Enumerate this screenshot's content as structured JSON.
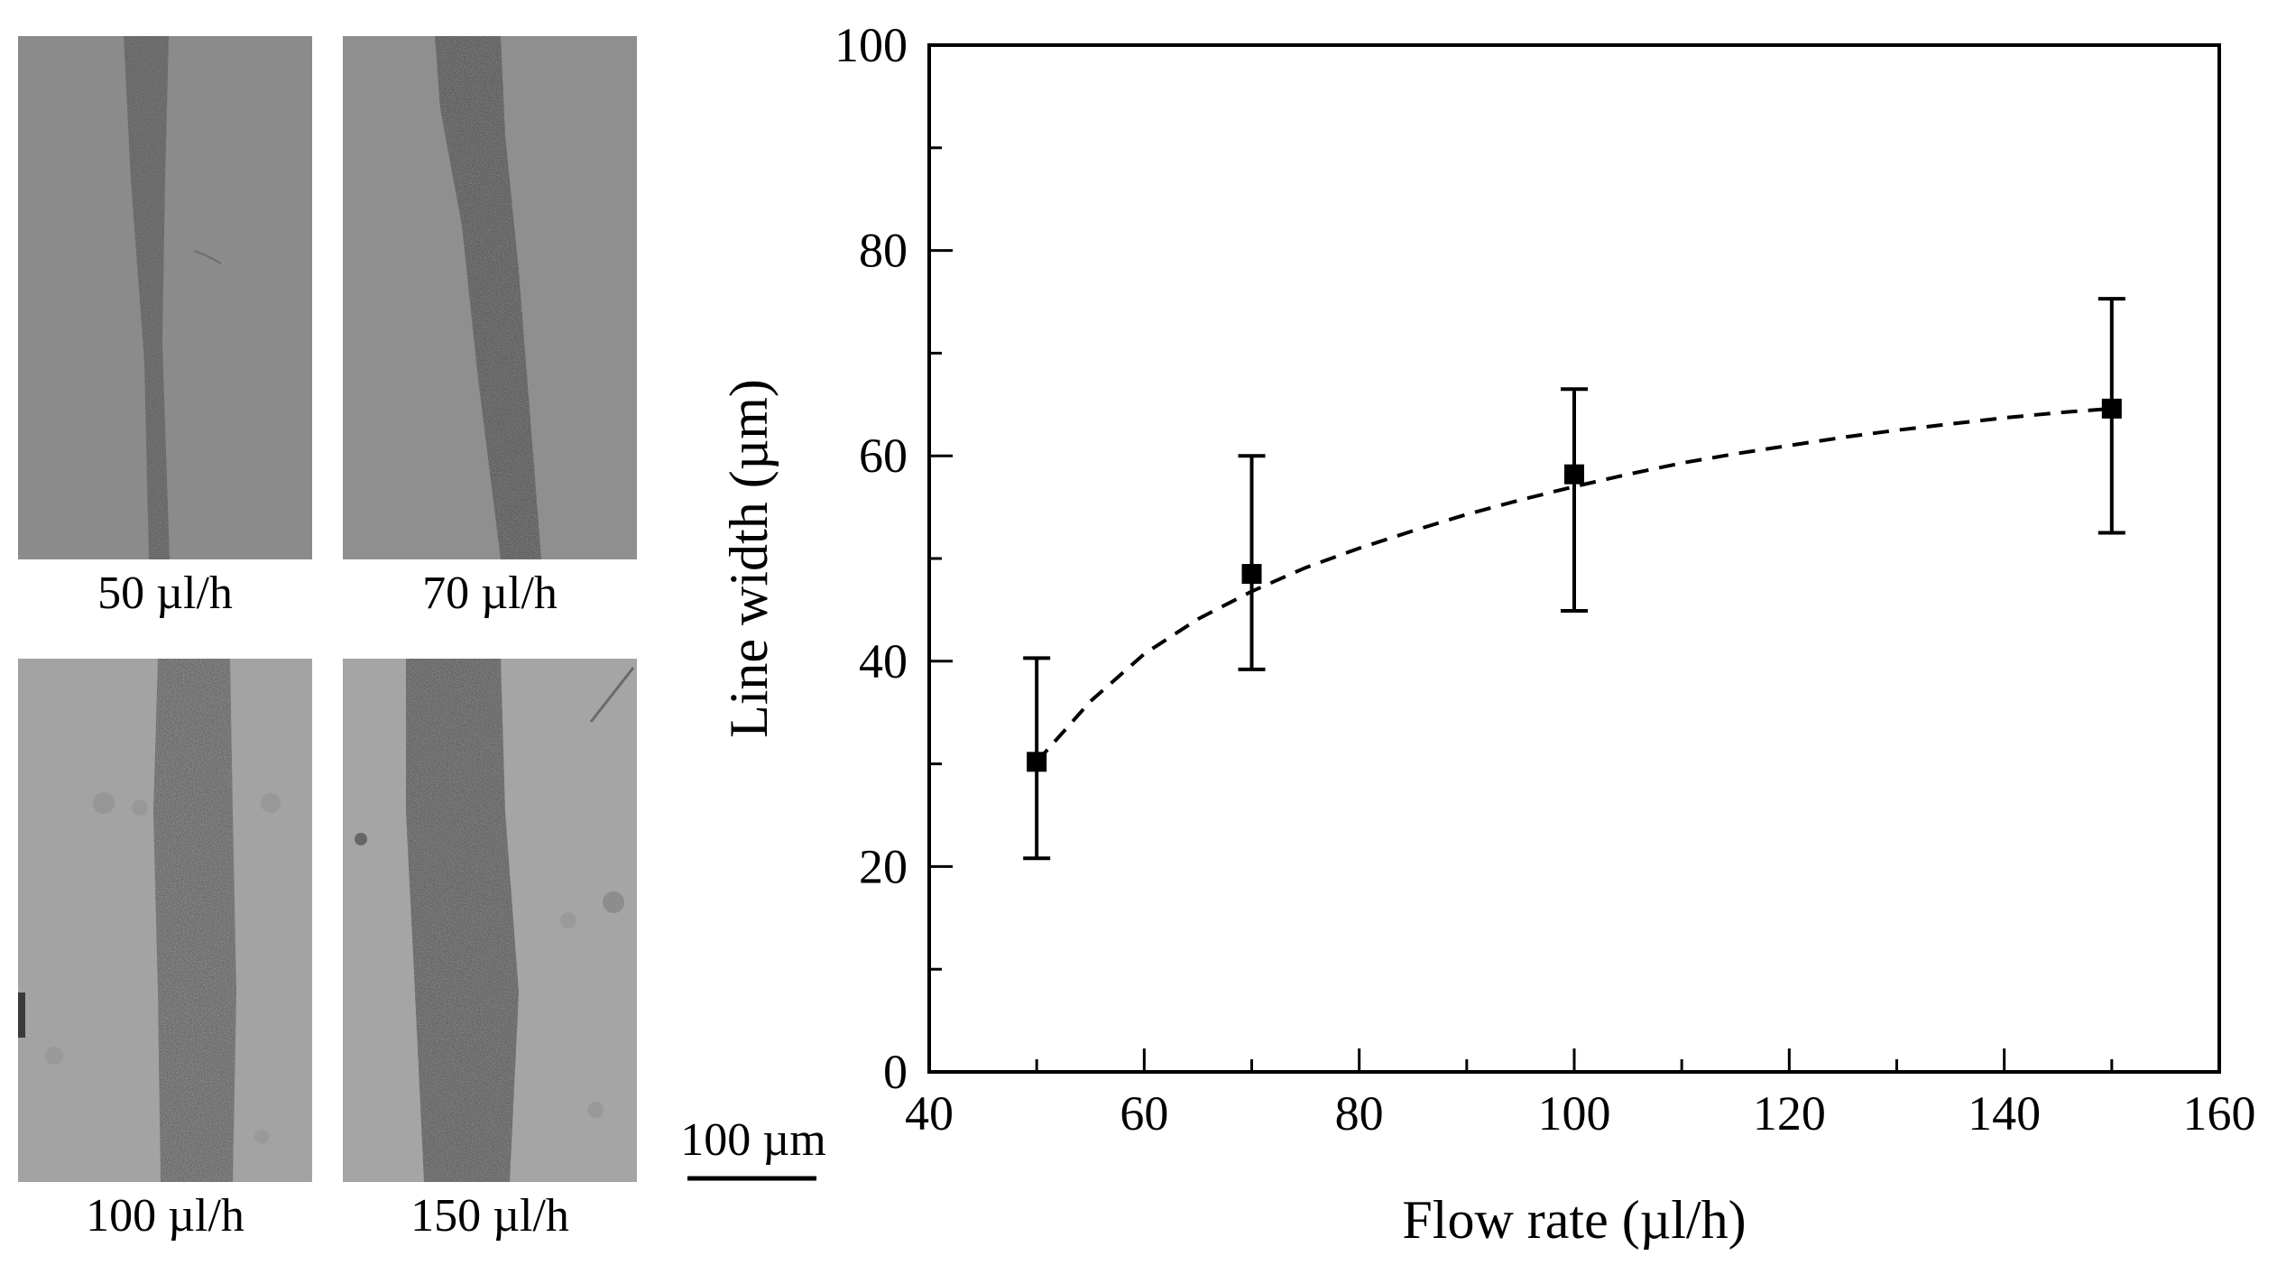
{
  "micrographs": [
    {
      "label": "50 µl/h",
      "flow_rate": 50
    },
    {
      "label": "70 µl/h",
      "flow_rate": 70
    },
    {
      "label": "100 µl/h",
      "flow_rate": 100
    },
    {
      "label": "150 µl/h",
      "flow_rate": 150
    }
  ],
  "scale_bar": {
    "label": "100 µm"
  },
  "chart_data": {
    "type": "scatter",
    "title": "",
    "xlabel": "Flow rate (µl/h)",
    "ylabel": "Line width (µm)",
    "xlim": [
      40,
      160
    ],
    "ylim": [
      0,
      100
    ],
    "xticks": [
      40,
      60,
      80,
      100,
      120,
      140,
      160
    ],
    "yticks": [
      0,
      20,
      40,
      60,
      80,
      100
    ],
    "x_minor_step": 10,
    "y_minor_step": 10,
    "grid": false,
    "series": [
      {
        "name": "Line width",
        "marker": "square",
        "x": [
          50,
          70,
          100,
          150
        ],
        "y": [
          30.2,
          48.5,
          58.2,
          64.6
        ],
        "yerr_low": [
          20.8,
          39.2,
          44.9,
          52.5
        ],
        "yerr_high": [
          40.3,
          60.0,
          66.5,
          75.3
        ]
      }
    ],
    "fit_curve": {
      "style": "dashed",
      "x": [
        50,
        55,
        60,
        65,
        70,
        75,
        80,
        85,
        90,
        95,
        100,
        105,
        110,
        115,
        120,
        125,
        130,
        135,
        140,
        145,
        150
      ],
      "y": [
        30.2,
        36.1,
        40.7,
        44.1,
        46.8,
        49.1,
        51.0,
        52.7,
        54.3,
        55.7,
        57.0,
        58.2,
        59.3,
        60.2,
        61.0,
        61.8,
        62.5,
        63.1,
        63.7,
        64.2,
        64.6
      ]
    }
  }
}
